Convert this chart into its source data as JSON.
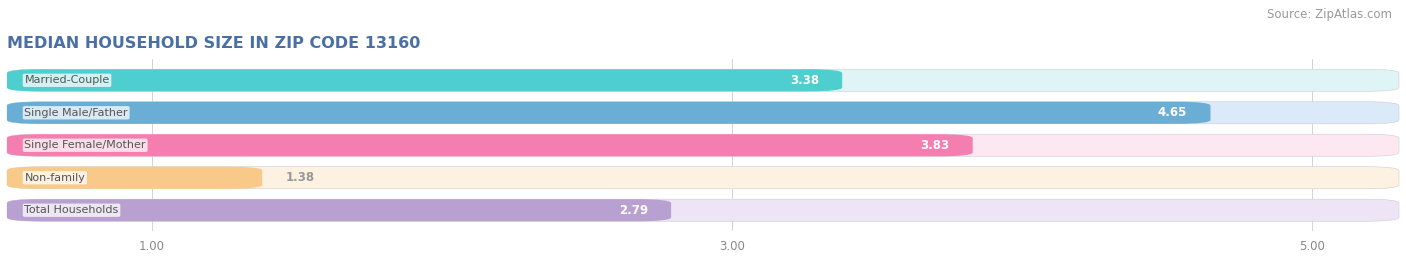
{
  "title": "MEDIAN HOUSEHOLD SIZE IN ZIP CODE 13160",
  "source": "Source: ZipAtlas.com",
  "categories": [
    "Married-Couple",
    "Single Male/Father",
    "Single Female/Mother",
    "Non-family",
    "Total Households"
  ],
  "values": [
    3.38,
    4.65,
    3.83,
    1.38,
    2.79
  ],
  "bar_colors": [
    "#4ecece",
    "#6aaed6",
    "#f47eb0",
    "#f9c98a",
    "#b8a0d0"
  ],
  "bar_bg_colors": [
    "#dff4f4",
    "#daeaf8",
    "#fde8f2",
    "#fdf2e2",
    "#ede5f5"
  ],
  "xlim_min": 0.5,
  "xlim_max": 5.3,
  "xticks": [
    1.0,
    3.0,
    5.0
  ],
  "title_color": "#4a6fa5",
  "source_color": "#999999",
  "bar_height": 0.68,
  "title_fontsize": 11.5,
  "source_fontsize": 8.5,
  "tick_fontsize": 8.5,
  "label_fontsize": 8.5,
  "category_fontsize": 8.0,
  "category_color": "#555555",
  "value_color_inside": "#ffffff",
  "value_color_outside": "#999999"
}
